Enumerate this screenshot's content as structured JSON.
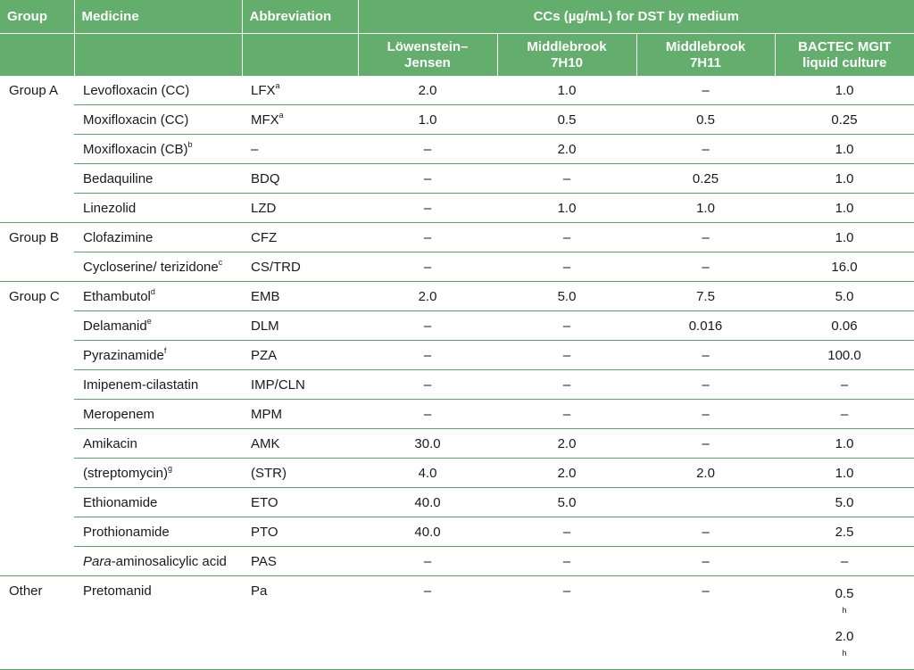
{
  "headers": {
    "group": "Group",
    "medicine": "Medicine",
    "abbreviation": "Abbreviation",
    "ccs": "CCs (µg/mL) for DST by medium",
    "lj_line1": "Löwenstein–",
    "lj_line2": "Jensen",
    "m7h10_line1": "Middlebrook",
    "m7h10_line2": "7H10",
    "m7h11_line1": "Middlebrook",
    "m7h11_line2": "7H11",
    "mgit_line1": "BACTEC MGIT",
    "mgit_line2": "liquid culture"
  },
  "rows": [
    {
      "group": "Group A",
      "medicine": "Levofloxacin (CC)",
      "med_sup": "",
      "abbr": "LFX",
      "abbr_sup": "a",
      "lj": "2.0",
      "h10": "1.0",
      "h11": "–",
      "mgit": "1.0"
    },
    {
      "group": "",
      "medicine": "Moxifloxacin (CC)",
      "med_sup": "",
      "abbr": "MFX",
      "abbr_sup": "a",
      "lj": "1.0",
      "h10": "0.5",
      "h11": "0.5",
      "mgit": "0.25"
    },
    {
      "group": "",
      "medicine": "Moxifloxacin (CB)",
      "med_sup": "b",
      "abbr": "–",
      "abbr_sup": "",
      "lj": "–",
      "h10": "2.0",
      "h11": "–",
      "mgit": "1.0"
    },
    {
      "group": "",
      "medicine": "Bedaquiline",
      "med_sup": "",
      "abbr": "BDQ",
      "abbr_sup": "",
      "lj": "–",
      "h10": "–",
      "h11": "0.25",
      "mgit": "1.0"
    },
    {
      "group": "",
      "medicine": "Linezolid",
      "med_sup": "",
      "abbr": "LZD",
      "abbr_sup": "",
      "lj": "–",
      "h10": "1.0",
      "h11": "1.0",
      "mgit": "1.0"
    },
    {
      "group": "Group B",
      "medicine": "Clofazimine",
      "med_sup": "",
      "abbr": "CFZ",
      "abbr_sup": "",
      "lj": "–",
      "h10": "–",
      "h11": "–",
      "mgit": "1.0"
    },
    {
      "group": "",
      "medicine": "Cycloserine/ terizidone",
      "med_sup": "c",
      "abbr": "CS/TRD",
      "abbr_sup": "",
      "lj": "–",
      "h10": "–",
      "h11": "–",
      "mgit": "16.0"
    },
    {
      "group": "Group C",
      "medicine": "Ethambutol",
      "med_sup": "d",
      "abbr": "EMB",
      "abbr_sup": "",
      "lj": "2.0",
      "h10": "5.0",
      "h11": "7.5",
      "mgit": "5.0"
    },
    {
      "group": "",
      "medicine": "Delamanid",
      "med_sup": "e",
      "abbr": "DLM",
      "abbr_sup": "",
      "lj": "–",
      "h10": "–",
      "h11": "0.016",
      "mgit": "0.06"
    },
    {
      "group": "",
      "medicine": "Pyrazinamide",
      "med_sup": "f",
      "abbr": "PZA",
      "abbr_sup": "",
      "lj": "–",
      "h10": "–",
      "h11": "–",
      "mgit": "100.0"
    },
    {
      "group": "",
      "medicine": "Imipenem-cilastatin",
      "med_sup": "",
      "abbr": "IMP/CLN",
      "abbr_sup": "",
      "lj": "–",
      "h10": "–",
      "h11": "–",
      "mgit": "–"
    },
    {
      "group": "",
      "medicine": "Meropenem",
      "med_sup": "",
      "abbr": "MPM",
      "abbr_sup": "",
      "lj": "–",
      "h10": "–",
      "h11": "–",
      "mgit": "–"
    },
    {
      "group": "",
      "medicine": "Amikacin",
      "med_sup": "",
      "abbr": "AMK",
      "abbr_sup": "",
      "lj": "30.0",
      "h10": "2.0",
      "h11": "–",
      "mgit": "1.0"
    },
    {
      "group": "",
      "medicine": "(streptomycin)",
      "med_sup": "g",
      "abbr": "(STR)",
      "abbr_sup": "",
      "lj": "4.0",
      "h10": "2.0",
      "h11": "2.0",
      "mgit": "1.0"
    },
    {
      "group": "",
      "medicine": "Ethionamide",
      "med_sup": "",
      "abbr": "ETO",
      "abbr_sup": "",
      "lj": "40.0",
      "h10": "5.0",
      "h11": "",
      "mgit": "5.0"
    },
    {
      "group": "",
      "medicine": "Prothionamide",
      "med_sup": "",
      "abbr": "PTO",
      "abbr_sup": "",
      "lj": "40.0",
      "h10": "–",
      "h11": "–",
      "mgit": "2.5"
    },
    {
      "group": "",
      "medicine_italic": "Para",
      "medicine": "-aminosalicylic acid",
      "med_sup": "",
      "abbr": "PAS",
      "abbr_sup": "",
      "lj": "–",
      "h10": "–",
      "h11": "–",
      "mgit": "–"
    }
  ],
  "last_row": {
    "group": "Other",
    "medicine": "Pretomanid",
    "abbr": "Pa",
    "lj": "–",
    "h10": "–",
    "h11": "–",
    "mgit1": "0.5",
    "mgit1_sup": "h",
    "mgit2": "2.0",
    "mgit2_sup": "h"
  }
}
